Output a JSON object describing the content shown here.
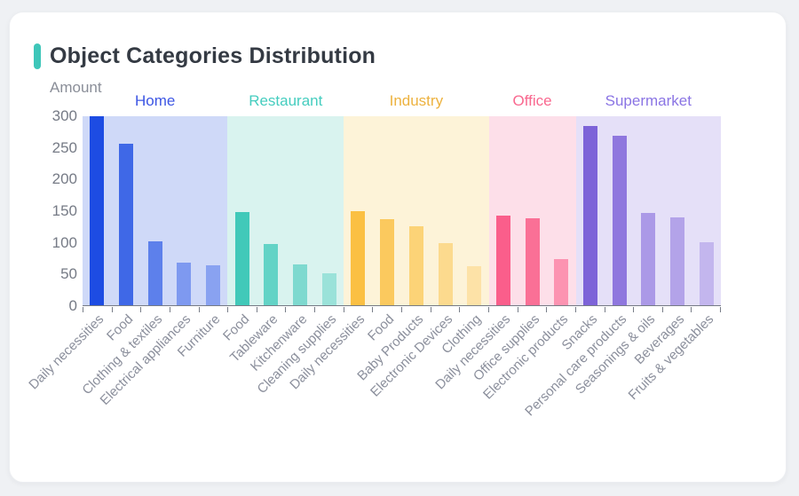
{
  "page": {
    "background": "#eff1f4",
    "card_background": "#ffffff"
  },
  "chart_data": {
    "type": "bar",
    "title": "Object Categories Distribution",
    "title_accent_color": "#3ec6b9",
    "ylabel": "Amount",
    "xlabel": "",
    "ylim": [
      0,
      300
    ],
    "yticks": [
      0,
      50,
      100,
      150,
      200,
      250,
      300
    ],
    "grid": false,
    "legend_position": "none",
    "axis_color": "#787d88",
    "axis_tick_label_color": "#8b8f9c",
    "groups": [
      {
        "name": "Home",
        "name_color": "#3d56e4",
        "band_color": "#cfd9f8",
        "bar_colors": [
          "#1d4ce3",
          "#3f68e7",
          "#5d80eb",
          "#7e99f0",
          "#89a2f1"
        ],
        "categories": [
          "Daily necessities",
          "Food",
          "Clothing & textiles",
          "Electrical appliances",
          "Furniture"
        ],
        "values": [
          300,
          257,
          102,
          68,
          63
        ]
      },
      {
        "name": "Restaurant",
        "name_color": "#45cdbf",
        "band_color": "#d9f3ef",
        "bar_colors": [
          "#41c9b9",
          "#63d3c6",
          "#7ed9cf",
          "#9ae2d9"
        ],
        "categories": [
          "Food",
          "Tableware",
          "Kitchenware",
          "Cleaning supplies"
        ],
        "values": [
          148,
          97,
          65,
          51
        ]
      },
      {
        "name": "Industry",
        "name_color": "#edb23f",
        "band_color": "#fdf3d8",
        "bar_colors": [
          "#fbc043",
          "#fbc95e",
          "#fcd377",
          "#fcda8e",
          "#fde2a7"
        ],
        "categories": [
          "Daily necessities",
          "Food",
          "Baby Products",
          "Electronic Devices",
          "Clothing"
        ],
        "values": [
          149,
          137,
          125,
          98,
          62
        ]
      },
      {
        "name": "Office",
        "name_color": "#f9688f",
        "band_color": "#fddfe9",
        "bar_colors": [
          "#fa5e8b",
          "#fa7096",
          "#fc93b1"
        ],
        "categories": [
          "Daily necessities",
          "Office supplies",
          "Electronic products"
        ],
        "values": [
          142,
          138,
          73
        ]
      },
      {
        "name": "Supermarket",
        "name_color": "#8a74e4",
        "band_color": "#e5e0f8",
        "bar_colors": [
          "#7d63d8",
          "#8f77de",
          "#ab99e7",
          "#b3a3e9",
          "#c3b6ee"
        ],
        "categories": [
          "Snacks",
          "Personal care products",
          "Seasonings & oils",
          "Beverages",
          "Fruits & vegetables"
        ],
        "values": [
          284,
          269,
          147,
          139,
          100
        ]
      }
    ]
  }
}
